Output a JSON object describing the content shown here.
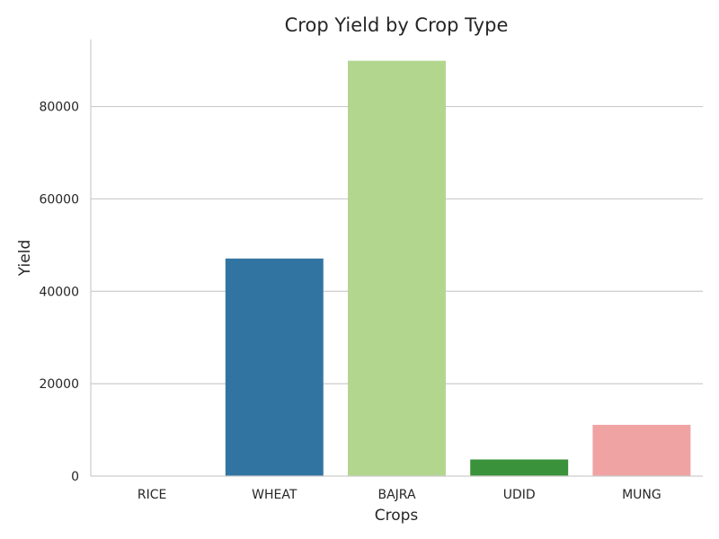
{
  "chart_data": {
    "type": "bar",
    "title": "Crop Yield by Crop Type",
    "xlabel": "Crops",
    "ylabel": "Yield",
    "categories": [
      "RICE",
      "WHEAT",
      "BAJRA",
      "UDID",
      "MUNG"
    ],
    "values": [
      50,
      47100,
      89900,
      3600,
      11100
    ],
    "colors": [
      "#a6cee3",
      "#3274a1",
      "#b2d68e",
      "#3a923a",
      "#f0a3a3"
    ],
    "ylim": [
      0,
      94500
    ],
    "yticks": [
      0,
      20000,
      40000,
      60000,
      80000
    ],
    "ytick_labels": [
      "0",
      "20000",
      "40000",
      "60000",
      "80000"
    ],
    "grid": "horizontal",
    "legend": "none"
  }
}
